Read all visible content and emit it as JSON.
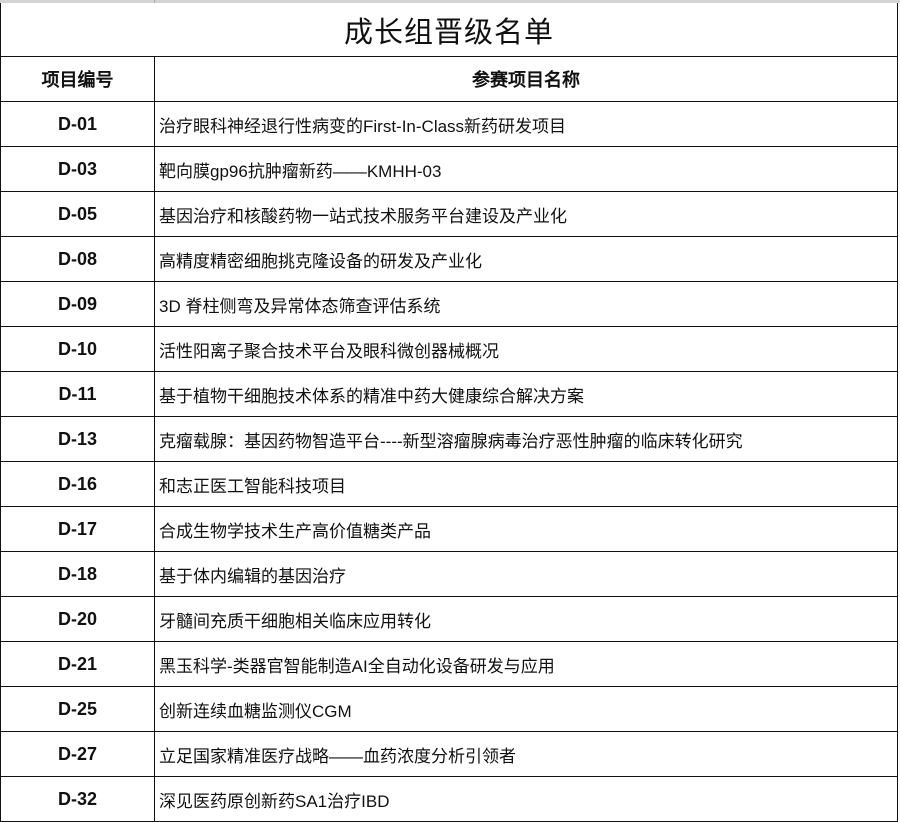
{
  "title": "成长组晋级名单",
  "headers": {
    "code": "项目编号",
    "name": "参赛项目名称"
  },
  "rows": [
    {
      "code": "D-01",
      "name": "治疗眼科神经退行性病变的First-In-Class新药研发项目"
    },
    {
      "code": "D-03",
      "name": "靶向膜gp96抗肿瘤新药——KMHH-03"
    },
    {
      "code": "D-05",
      "name": "基因治疗和核酸药物一站式技术服务平台建设及产业化"
    },
    {
      "code": "D-08",
      "name": "高精度精密细胞挑克隆设备的研发及产业化"
    },
    {
      "code": "D-09",
      "name": "3D 脊柱侧弯及异常体态筛查评估系统"
    },
    {
      "code": "D-10",
      "name": "活性阳离子聚合技术平台及眼科微创器械概况"
    },
    {
      "code": "D-11",
      "name": "基于植物干细胞技术体系的精准中药大健康综合解决方案"
    },
    {
      "code": "D-13",
      "name": "克瘤载腺：基因药物智造平台----新型溶瘤腺病毒治疗恶性肿瘤的临床转化研究"
    },
    {
      "code": "D-16",
      "name": "和志正医工智能科技项目"
    },
    {
      "code": "D-17",
      "name": "合成生物学技术生产高价值糖类产品"
    },
    {
      "code": "D-18",
      "name": "基于体内编辑的基因治疗"
    },
    {
      "code": "D-20",
      "name": "牙髓间充质干细胞相关临床应用转化"
    },
    {
      "code": "D-21",
      "name": "黑玉科学-类器官智能制造AI全自动化设备研发与应用"
    },
    {
      "code": "D-25",
      "name": "创新连续血糖监测仪CGM"
    },
    {
      "code": "D-27",
      "name": "立足国家精准医疗战略——血药浓度分析引领者"
    },
    {
      "code": "D-32",
      "name": "深见医药原创新药SA1治疗IBD"
    }
  ]
}
